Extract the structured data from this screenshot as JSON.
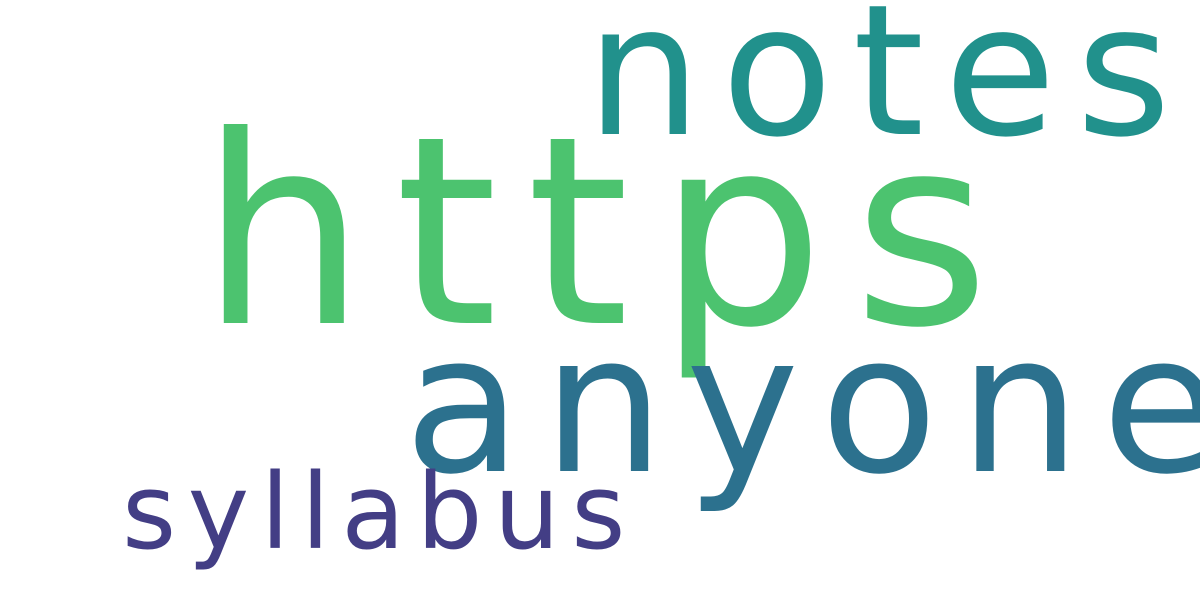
{
  "word_cloud": {
    "background": "#ffffff",
    "words": [
      {
        "id": "notes",
        "text": "notes",
        "color": "#21918c"
      },
      {
        "id": "https",
        "text": "https",
        "color": "#4cc36f"
      },
      {
        "id": "anyone",
        "text": "anyone",
        "color": "#2c718e"
      },
      {
        "id": "syllabus",
        "text": "syllabus",
        "color": "#433e85"
      }
    ]
  }
}
